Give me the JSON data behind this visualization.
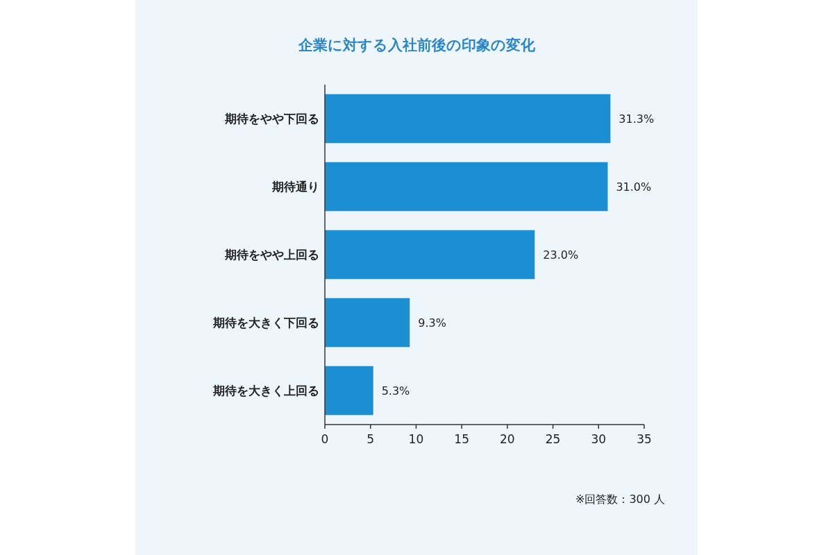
{
  "chart_data": {
    "type": "bar",
    "orientation": "horizontal",
    "title": "企業に対する入社前後の印象の変化",
    "categories": [
      "期待をやや下回る",
      "期待通り",
      "期待をやや上回る",
      "期待を大きく下回る",
      "期待を大きく上回る"
    ],
    "values": [
      31.3,
      31.0,
      23.0,
      9.3,
      5.3
    ],
    "value_labels": [
      "31.3%",
      "31.0%",
      "23.0%",
      "9.3%",
      "5.3%"
    ],
    "color": "#1b8fd2",
    "xlim": [
      0,
      35
    ],
    "xticks": [
      0,
      5,
      10,
      15,
      20,
      25,
      30,
      35
    ],
    "grid": false,
    "annotations": [
      "※回答数：300 人"
    ]
  }
}
